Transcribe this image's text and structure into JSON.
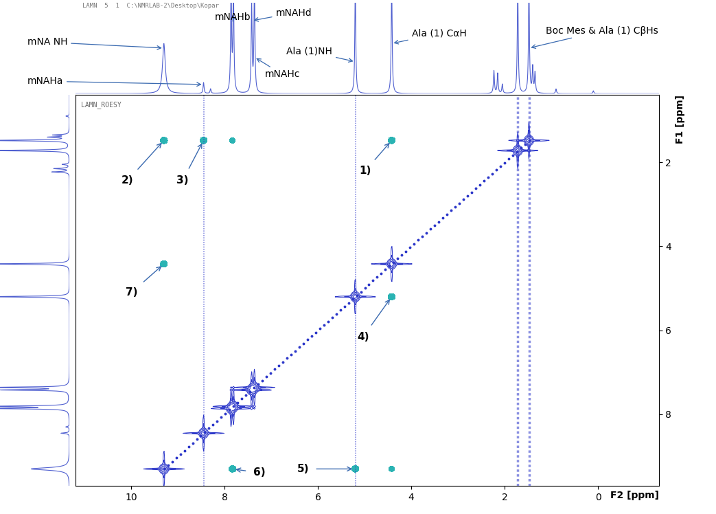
{
  "chart_data": {
    "type": "nmr_2d",
    "header": "LAMN  5  1  C:\\NMRLAB-2\\Desktop\\Kopar",
    "inset_title": "LAMN_ROESY",
    "x_label": "F2 [ppm]",
    "y_label": "F1 [ppm]",
    "xlim": [
      11.2,
      -1.3
    ],
    "xticks": [
      10,
      8,
      6,
      4,
      2,
      0
    ],
    "ylim": [
      9.7,
      0.4
    ],
    "yticks": [
      2,
      4,
      6,
      8
    ],
    "tick_labels": true,
    "projection": {
      "ppm": [
        9.3,
        8.45,
        8.3,
        7.86,
        7.81,
        7.42,
        7.36,
        5.2,
        4.42,
        2.23,
        2.15,
        2.05,
        1.72,
        1.48,
        1.4,
        1.35,
        0.9,
        0.1
      ],
      "height": [
        0.55,
        0.12,
        0.05,
        1.2,
        1.2,
        0.95,
        1.2,
        1.2,
        1.2,
        0.25,
        0.22,
        0.1,
        1.2,
        1.2,
        0.28,
        0.22,
        0.05,
        0.03
      ],
      "ylim": [
        0,
        1
      ]
    },
    "assignments": [
      {
        "text": "mNA NH",
        "ppm": 9.3
      },
      {
        "text": "mNAHa",
        "ppm": 8.45
      },
      {
        "text": "mNAHb",
        "ppm": 7.83
      },
      {
        "text": "mNAHd",
        "ppm": 7.42
      },
      {
        "text": "mNAHc",
        "ppm": 7.36
      },
      {
        "text": "Ala (1)NH",
        "ppm": 5.2
      },
      {
        "text": "Ala (1) CαH",
        "ppm": 4.42
      },
      {
        "text": "Boc Mes & Ala (1) CβHs",
        "ppm": 1.48
      }
    ],
    "diagonal_peaks": [
      9.3,
      8.45,
      7.86,
      7.81,
      7.42,
      7.36,
      5.2,
      4.42,
      1.72,
      1.48
    ],
    "cross_peaks": [
      {
        "label": "1)",
        "f2": 4.42,
        "f1": 1.48
      },
      {
        "label": "2)",
        "f2": 9.3,
        "f1": 1.48
      },
      {
        "label": "3)",
        "f2": 8.45,
        "f1": 1.48
      },
      {
        "label": "4)",
        "f2": 4.42,
        "f1": 5.2
      },
      {
        "label": "5)",
        "f2": 5.2,
        "f1": 9.3
      },
      {
        "label": "6)",
        "f2": 7.83,
        "f1": 9.3
      },
      {
        "label": "7)",
        "f2": 9.3,
        "f1": 4.42
      }
    ],
    "other_cross_peaks": [
      {
        "f2": 4.42,
        "f1": 9.3
      },
      {
        "f2": 7.83,
        "f1": 1.48
      }
    ],
    "t1_noise": [
      8.45,
      5.2,
      1.72,
      1.48
    ]
  }
}
